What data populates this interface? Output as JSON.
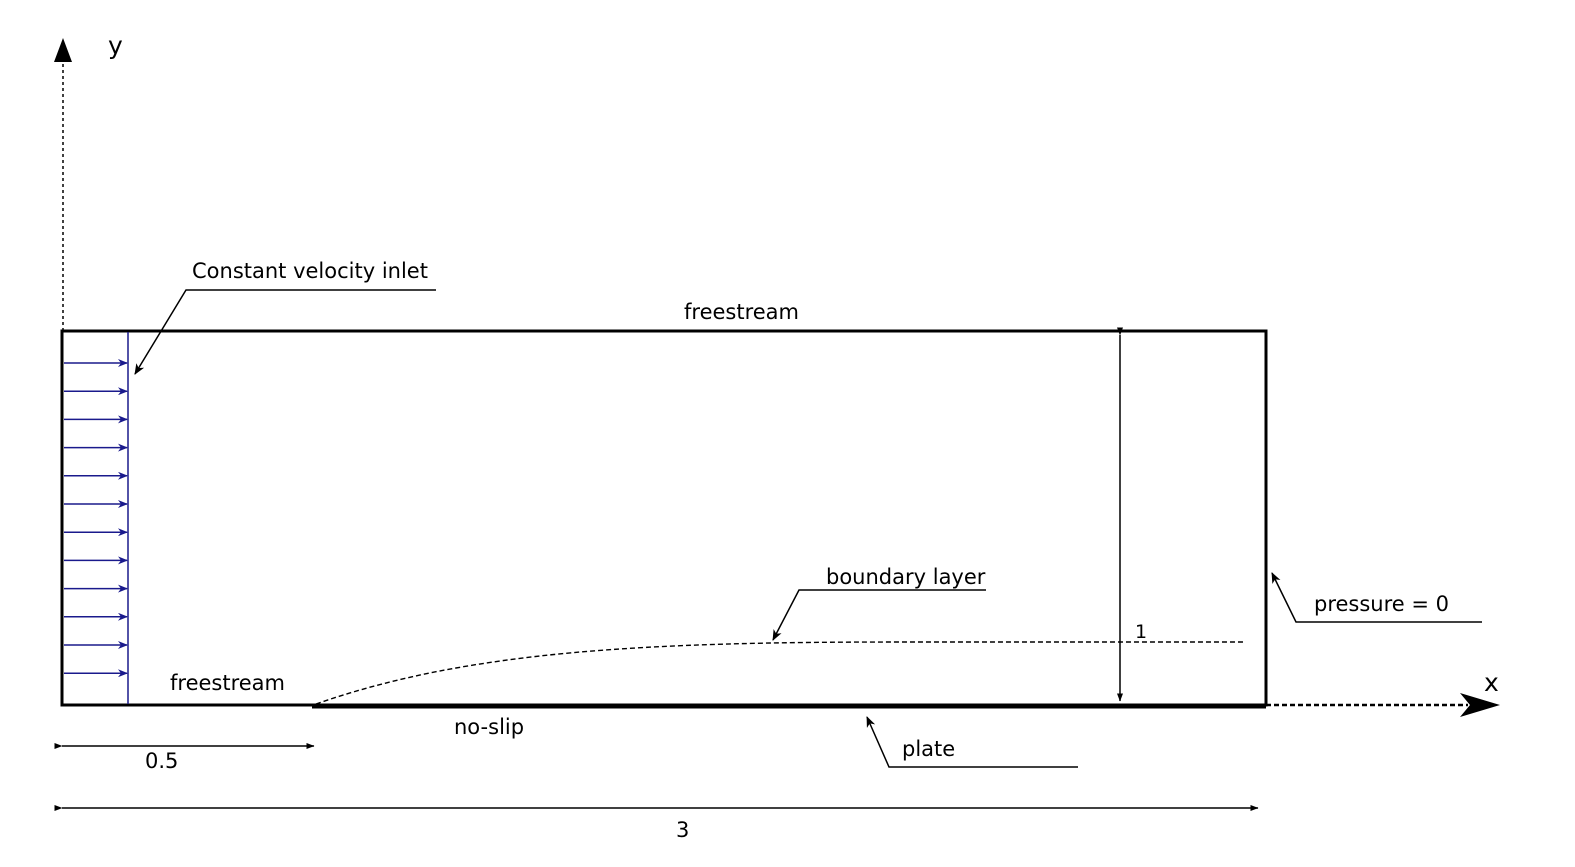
{
  "axes": {
    "x_label": "x",
    "y_label": "y"
  },
  "labels": {
    "inlet": "Constant velocity inlet",
    "top": "freestream",
    "bottom_left": "freestream",
    "no_slip": "no-slip",
    "plate": "plate",
    "boundary_layer": "boundary layer",
    "outlet": "pressure = 0"
  },
  "dimensions": {
    "plate_start": "0.5",
    "length": "3",
    "height": "1"
  },
  "colors": {
    "inlet": "#1a1a8c",
    "line": "#000000"
  }
}
